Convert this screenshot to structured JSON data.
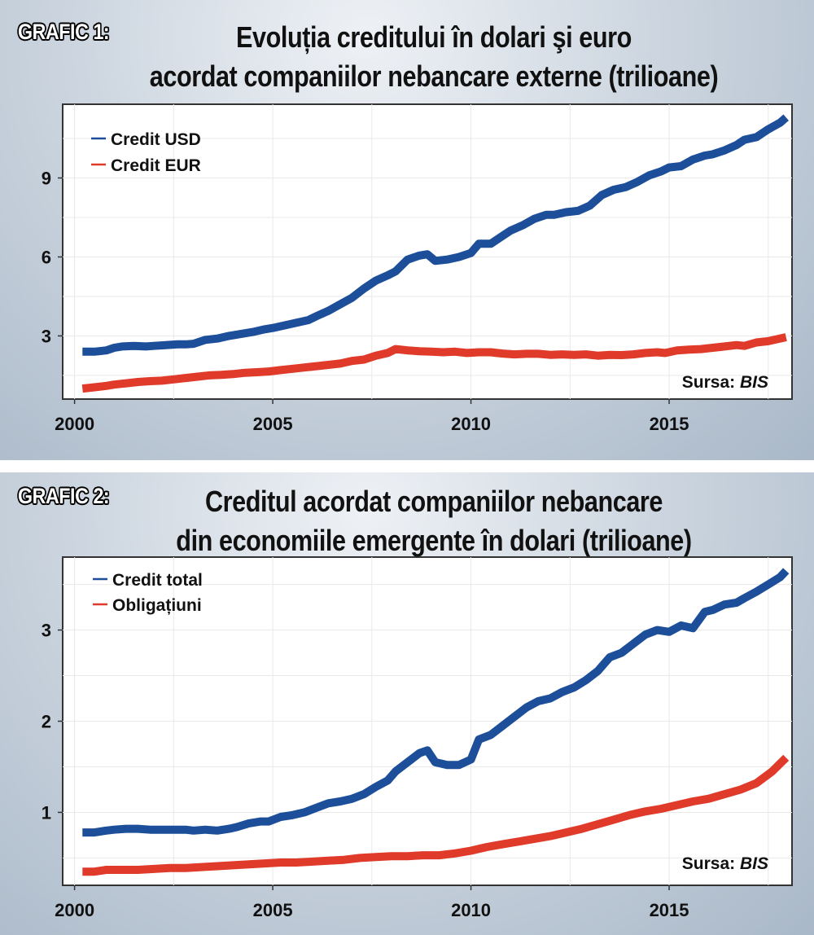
{
  "colors": {
    "usd_blue": "#1c4e99",
    "eur_red": "#e03a2b",
    "grid": "#e9e9e9"
  },
  "chart_data": [
    {
      "type": "line",
      "label": "GRAFIC 1:",
      "title_lines": [
        "Evoluția creditului în dolari şi euro",
        "acordat companiilor nebancare externe (trilioane)"
      ],
      "source_prefix": "Sursa: ",
      "source_name": "BIS",
      "xlim": [
        1999.7,
        2018.1
      ],
      "ylim": [
        0.6,
        11.8
      ],
      "xticks": [
        2000,
        2005,
        2010,
        2015
      ],
      "yticks": [
        3,
        6,
        9
      ],
      "grid": true,
      "legend_position": "top-left",
      "series": [
        {
          "name": "Credit USD",
          "color": "#1c4e99",
          "x": [
            2000.2,
            2000.5,
            2000.8,
            2001.0,
            2001.2,
            2001.5,
            2001.8,
            2002.0,
            2002.3,
            2002.6,
            2002.8,
            2003.0,
            2003.3,
            2003.6,
            2003.9,
            2004.1,
            2004.5,
            2004.8,
            2005.0,
            2005.3,
            2005.6,
            2005.9,
            2006.1,
            2006.4,
            2006.7,
            2007.0,
            2007.3,
            2007.6,
            2007.9,
            2008.1,
            2008.4,
            2008.7,
            2008.9,
            2009.1,
            2009.4,
            2009.7,
            2010.0,
            2010.2,
            2010.5,
            2010.8,
            2011.0,
            2011.3,
            2011.6,
            2011.9,
            2012.1,
            2012.4,
            2012.7,
            2013.0,
            2013.3,
            2013.6,
            2013.9,
            2014.2,
            2014.5,
            2014.8,
            2015.0,
            2015.3,
            2015.6,
            2015.9,
            2016.1,
            2016.4,
            2016.7,
            2016.9,
            2017.2,
            2017.5,
            2017.8,
            2017.95
          ],
          "values": [
            2.4,
            2.4,
            2.45,
            2.55,
            2.6,
            2.62,
            2.6,
            2.62,
            2.65,
            2.68,
            2.68,
            2.7,
            2.85,
            2.9,
            3.0,
            3.05,
            3.15,
            3.25,
            3.3,
            3.4,
            3.5,
            3.6,
            3.75,
            3.95,
            4.2,
            4.45,
            4.8,
            5.1,
            5.3,
            5.45,
            5.9,
            6.05,
            6.1,
            5.85,
            5.9,
            6.0,
            6.15,
            6.5,
            6.5,
            6.8,
            7.0,
            7.2,
            7.45,
            7.6,
            7.6,
            7.7,
            7.75,
            7.95,
            8.35,
            8.55,
            8.65,
            8.85,
            9.1,
            9.25,
            9.4,
            9.45,
            9.7,
            9.85,
            9.9,
            10.05,
            10.25,
            10.45,
            10.55,
            10.85,
            11.1,
            11.3
          ]
        },
        {
          "name": "Credit EUR",
          "color": "#e03a2b",
          "x": [
            2000.2,
            2000.5,
            2000.8,
            2001.0,
            2001.3,
            2001.6,
            2001.9,
            2002.2,
            2002.5,
            2002.8,
            2003.1,
            2003.4,
            2003.7,
            2004.0,
            2004.3,
            2004.6,
            2004.9,
            2005.2,
            2005.5,
            2005.8,
            2006.1,
            2006.4,
            2006.7,
            2007.0,
            2007.3,
            2007.6,
            2007.9,
            2008.1,
            2008.4,
            2008.7,
            2009.0,
            2009.3,
            2009.6,
            2009.9,
            2010.2,
            2010.5,
            2010.8,
            2011.1,
            2011.4,
            2011.7,
            2012.0,
            2012.3,
            2012.6,
            2012.9,
            2013.2,
            2013.5,
            2013.8,
            2014.1,
            2014.4,
            2014.7,
            2014.9,
            2015.2,
            2015.5,
            2015.8,
            2016.1,
            2016.4,
            2016.7,
            2016.9,
            2017.2,
            2017.5,
            2017.95
          ],
          "values": [
            1.0,
            1.05,
            1.1,
            1.15,
            1.2,
            1.25,
            1.28,
            1.3,
            1.35,
            1.4,
            1.45,
            1.5,
            1.52,
            1.55,
            1.6,
            1.62,
            1.65,
            1.7,
            1.75,
            1.8,
            1.85,
            1.9,
            1.95,
            2.05,
            2.1,
            2.25,
            2.35,
            2.5,
            2.45,
            2.42,
            2.4,
            2.38,
            2.4,
            2.35,
            2.38,
            2.38,
            2.33,
            2.3,
            2.32,
            2.32,
            2.28,
            2.3,
            2.28,
            2.3,
            2.25,
            2.28,
            2.27,
            2.3,
            2.35,
            2.38,
            2.35,
            2.45,
            2.48,
            2.5,
            2.55,
            2.6,
            2.65,
            2.62,
            2.75,
            2.8,
            2.95
          ]
        }
      ]
    },
    {
      "type": "line",
      "label": "GRAFIC 2:",
      "title_lines": [
        "Creditul acordat companiilor nebancare",
        "din economiile emergente în dolari (trilioane)"
      ],
      "source_prefix": "Sursa: ",
      "source_name": "BIS",
      "xlim": [
        1999.7,
        2018.1
      ],
      "ylim": [
        0.2,
        3.8
      ],
      "xticks": [
        2000,
        2005,
        2010,
        2015
      ],
      "yticks": [
        1,
        2,
        3
      ],
      "grid": true,
      "legend_position": "top-left",
      "series": [
        {
          "name": "Credit total",
          "color": "#1c4e99",
          "x": [
            2000.2,
            2000.5,
            2000.8,
            2001.0,
            2001.3,
            2001.6,
            2001.9,
            2002.2,
            2002.5,
            2002.8,
            2003.0,
            2003.3,
            2003.6,
            2003.9,
            2004.1,
            2004.4,
            2004.7,
            2004.9,
            2005.2,
            2005.5,
            2005.8,
            2006.1,
            2006.4,
            2006.7,
            2007.0,
            2007.3,
            2007.6,
            2007.9,
            2008.1,
            2008.4,
            2008.7,
            2008.9,
            2009.1,
            2009.4,
            2009.7,
            2010.0,
            2010.2,
            2010.5,
            2010.8,
            2011.1,
            2011.4,
            2011.7,
            2012.0,
            2012.3,
            2012.6,
            2012.9,
            2013.2,
            2013.5,
            2013.8,
            2014.1,
            2014.4,
            2014.7,
            2015.0,
            2015.3,
            2015.6,
            2015.9,
            2016.1,
            2016.4,
            2016.7,
            2016.9,
            2017.2,
            2017.5,
            2017.8,
            2017.95
          ],
          "values": [
            0.78,
            0.78,
            0.8,
            0.81,
            0.82,
            0.82,
            0.81,
            0.81,
            0.81,
            0.81,
            0.8,
            0.81,
            0.8,
            0.82,
            0.84,
            0.88,
            0.9,
            0.9,
            0.95,
            0.97,
            1.0,
            1.05,
            1.1,
            1.12,
            1.15,
            1.2,
            1.28,
            1.35,
            1.45,
            1.55,
            1.65,
            1.68,
            1.55,
            1.52,
            1.52,
            1.58,
            1.8,
            1.85,
            1.95,
            2.05,
            2.15,
            2.22,
            2.25,
            2.32,
            2.37,
            2.45,
            2.55,
            2.7,
            2.75,
            2.85,
            2.95,
            3.0,
            2.98,
            3.05,
            3.02,
            3.2,
            3.22,
            3.28,
            3.3,
            3.35,
            3.42,
            3.5,
            3.58,
            3.65
          ]
        },
        {
          "name": "Obligațiuni",
          "color": "#e03a2b",
          "x": [
            2000.2,
            2000.5,
            2000.8,
            2001.2,
            2001.6,
            2002.0,
            2002.4,
            2002.8,
            2003.2,
            2003.6,
            2004.0,
            2004.4,
            2004.8,
            2005.2,
            2005.6,
            2006.0,
            2006.4,
            2006.8,
            2007.2,
            2007.6,
            2008.0,
            2008.4,
            2008.8,
            2009.2,
            2009.6,
            2010.0,
            2010.4,
            2010.8,
            2011.2,
            2011.6,
            2012.0,
            2012.4,
            2012.8,
            2013.2,
            2013.6,
            2014.0,
            2014.4,
            2014.8,
            2015.2,
            2015.6,
            2016.0,
            2016.4,
            2016.8,
            2017.2,
            2017.6,
            2017.95
          ],
          "values": [
            0.35,
            0.35,
            0.37,
            0.37,
            0.37,
            0.38,
            0.39,
            0.39,
            0.4,
            0.41,
            0.42,
            0.43,
            0.44,
            0.45,
            0.45,
            0.46,
            0.47,
            0.48,
            0.5,
            0.51,
            0.52,
            0.52,
            0.53,
            0.53,
            0.55,
            0.58,
            0.62,
            0.65,
            0.68,
            0.71,
            0.74,
            0.78,
            0.82,
            0.87,
            0.92,
            0.97,
            1.01,
            1.04,
            1.08,
            1.12,
            1.15,
            1.2,
            1.25,
            1.32,
            1.45,
            1.6
          ]
        }
      ]
    }
  ]
}
